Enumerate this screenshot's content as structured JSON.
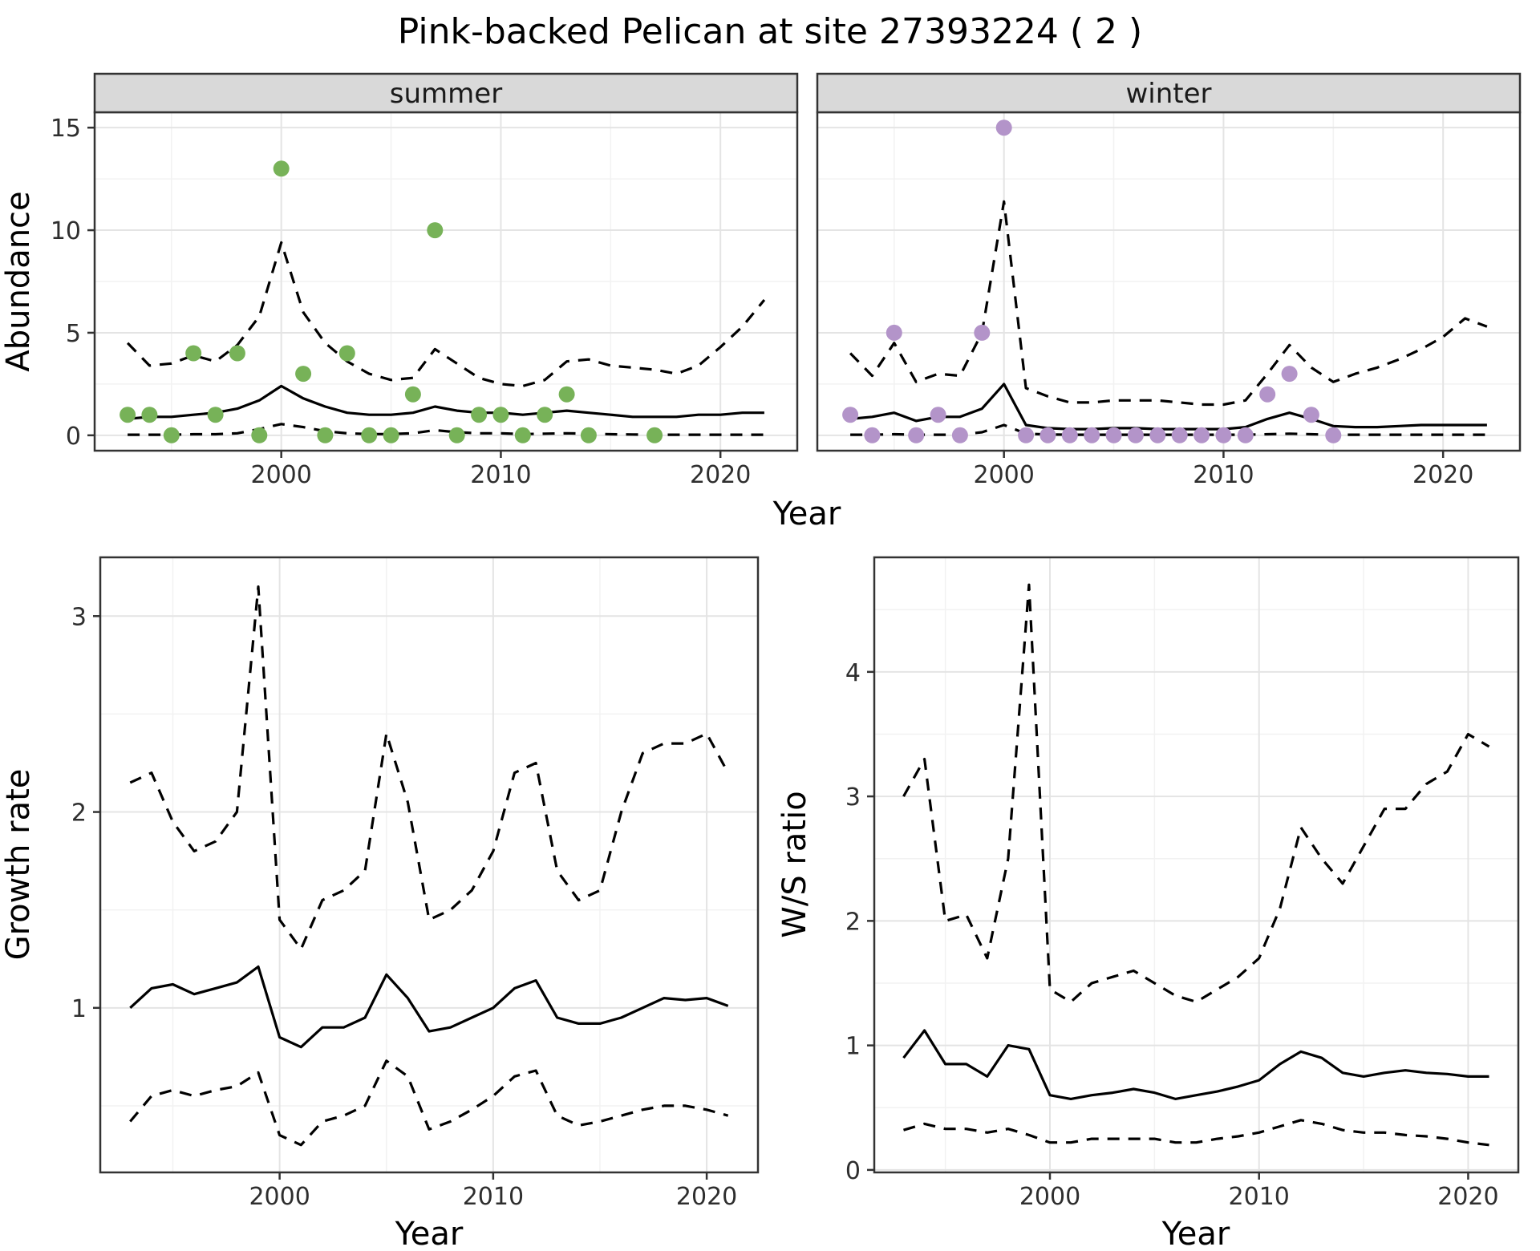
{
  "title": "Pink-backed Pelican at site 27393224 ( 2 )",
  "palette": {
    "summer_point": "#77b258",
    "winter_point": "#b394c9",
    "line": "#000000",
    "strip_bg": "#d9d9d9",
    "grid_major": "#e4e4e4",
    "grid_minor": "#f2f2f2",
    "panel_border": "#333333",
    "tick_text": "#2e2e2e"
  },
  "chart_data": [
    {
      "id": "abundance-summer",
      "type": "scatter",
      "facet": "summer",
      "xlabel": "Year",
      "ylabel": "Abundance",
      "xlim": [
        1991.5,
        2023.5
      ],
      "ylim": [
        -0.75,
        15.75
      ],
      "xticks": [
        2000,
        2010,
        2020
      ],
      "yticks": [
        0,
        5,
        10,
        15
      ],
      "legend": "none",
      "grid": true,
      "point_color": "#77b258",
      "points": {
        "x": [
          1993,
          1994,
          1995,
          1996,
          1997,
          1998,
          1999,
          2000,
          2001,
          2002,
          2003,
          2004,
          2005,
          2006,
          2007,
          2008,
          2009,
          2010,
          2011,
          2012,
          2013,
          2014,
          2017
        ],
        "y": [
          1,
          1,
          0,
          4,
          1,
          4,
          0,
          13,
          3,
          0,
          4,
          0,
          0,
          2,
          10,
          0,
          1,
          1,
          0,
          1,
          2,
          0,
          0
        ]
      },
      "series_x": [
        1993,
        1994,
        1995,
        1996,
        1997,
        1998,
        1999,
        2000,
        2001,
        2002,
        2003,
        2004,
        2005,
        2006,
        2007,
        2008,
        2009,
        2010,
        2011,
        2012,
        2013,
        2014,
        2015,
        2016,
        2017,
        2018,
        2019,
        2020,
        2021,
        2022
      ],
      "fit": [
        0.8,
        0.9,
        0.9,
        1.0,
        1.1,
        1.3,
        1.7,
        2.4,
        1.8,
        1.4,
        1.1,
        1.0,
        1.0,
        1.1,
        1.4,
        1.2,
        1.1,
        1.1,
        1.0,
        1.1,
        1.2,
        1.1,
        1.0,
        0.9,
        0.9,
        0.9,
        1.0,
        1.0,
        1.1,
        1.1
      ],
      "upper": [
        4.5,
        3.4,
        3.5,
        3.9,
        3.6,
        4.4,
        5.8,
        9.4,
        6.0,
        4.5,
        3.6,
        3.0,
        2.7,
        2.8,
        4.2,
        3.5,
        2.8,
        2.5,
        2.4,
        2.7,
        3.6,
        3.7,
        3.4,
        3.3,
        3.2,
        3.0,
        3.4,
        4.3,
        5.3,
        6.6
      ],
      "lower": [
        0.03,
        0.03,
        0.03,
        0.05,
        0.05,
        0.1,
        0.3,
        0.55,
        0.4,
        0.2,
        0.1,
        0.06,
        0.06,
        0.1,
        0.25,
        0.15,
        0.1,
        0.1,
        0.06,
        0.08,
        0.1,
        0.08,
        0.05,
        0.04,
        0.03,
        0.03,
        0.03,
        0.03,
        0.03,
        0.03
      ]
    },
    {
      "id": "abundance-winter",
      "type": "scatter",
      "facet": "winter",
      "xlabel": "Year",
      "ylabel": "Abundance",
      "xlim": [
        1991.5,
        2023.5
      ],
      "ylim": [
        -0.75,
        15.75
      ],
      "xticks": [
        2000,
        2010,
        2020
      ],
      "yticks": [
        0,
        5,
        10,
        15
      ],
      "legend": "none",
      "grid": true,
      "point_color": "#b394c9",
      "points": {
        "x": [
          1993,
          1994,
          1995,
          1996,
          1997,
          1998,
          1999,
          2000,
          2001,
          2002,
          2003,
          2004,
          2005,
          2006,
          2007,
          2008,
          2009,
          2010,
          2011,
          2012,
          2013,
          2014,
          2015
        ],
        "y": [
          1,
          0,
          5,
          0,
          1,
          0,
          5,
          15,
          0,
          0,
          0,
          0,
          0,
          0,
          0,
          0,
          0,
          0,
          0,
          2,
          3,
          1,
          0
        ]
      },
      "series_x": [
        1993,
        1994,
        1995,
        1996,
        1997,
        1998,
        1999,
        2000,
        2001,
        2002,
        2003,
        2004,
        2005,
        2006,
        2007,
        2008,
        2009,
        2010,
        2011,
        2012,
        2013,
        2014,
        2015,
        2016,
        2017,
        2018,
        2019,
        2020,
        2021,
        2022
      ],
      "fit": [
        0.8,
        0.9,
        1.1,
        0.7,
        0.9,
        0.9,
        1.3,
        2.5,
        0.5,
        0.35,
        0.3,
        0.3,
        0.35,
        0.35,
        0.3,
        0.3,
        0.3,
        0.3,
        0.4,
        0.8,
        1.1,
        0.8,
        0.45,
        0.4,
        0.4,
        0.45,
        0.5,
        0.5,
        0.5,
        0.5
      ],
      "upper": [
        4.0,
        2.9,
        4.5,
        2.6,
        3.0,
        2.9,
        5.0,
        11.4,
        2.3,
        1.9,
        1.6,
        1.6,
        1.7,
        1.7,
        1.7,
        1.6,
        1.5,
        1.5,
        1.7,
        3.0,
        4.4,
        3.3,
        2.6,
        3.0,
        3.3,
        3.7,
        4.2,
        4.8,
        5.7,
        5.3
      ],
      "lower": [
        0.03,
        0.03,
        0.05,
        0.03,
        0.03,
        0.03,
        0.15,
        0.5,
        0.08,
        0.04,
        0.03,
        0.03,
        0.03,
        0.03,
        0.03,
        0.03,
        0.03,
        0.03,
        0.03,
        0.05,
        0.08,
        0.05,
        0.03,
        0.03,
        0.03,
        0.03,
        0.03,
        0.03,
        0.03,
        0.03
      ]
    },
    {
      "id": "growth-rate",
      "type": "line",
      "xlabel": "Year",
      "ylabel": "Growth rate",
      "xlim": [
        1991.6,
        2022.4
      ],
      "ylim": [
        0.16,
        3.3
      ],
      "xticks": [
        2000,
        2010,
        2020
      ],
      "yticks": [
        1,
        2,
        3
      ],
      "legend": "none",
      "grid": true,
      "series_x": [
        1993,
        1994,
        1995,
        1996,
        1997,
        1998,
        1999,
        2000,
        2001,
        2002,
        2003,
        2004,
        2005,
        2006,
        2007,
        2008,
        2009,
        2010,
        2011,
        2012,
        2013,
        2014,
        2015,
        2016,
        2017,
        2018,
        2019,
        2020,
        2021
      ],
      "fit": [
        1.0,
        1.1,
        1.12,
        1.07,
        1.1,
        1.13,
        1.21,
        0.85,
        0.8,
        0.9,
        0.9,
        0.95,
        1.17,
        1.05,
        0.88,
        0.9,
        0.95,
        1.0,
        1.1,
        1.14,
        0.95,
        0.92,
        0.92,
        0.95,
        1.0,
        1.05,
        1.04,
        1.05,
        1.01
      ],
      "upper": [
        2.15,
        2.2,
        1.95,
        1.8,
        1.85,
        2.0,
        3.15,
        1.45,
        1.3,
        1.55,
        1.6,
        1.7,
        2.4,
        2.05,
        1.45,
        1.5,
        1.6,
        1.8,
        2.2,
        2.25,
        1.7,
        1.55,
        1.6,
        2.0,
        2.3,
        2.35,
        2.35,
        2.4,
        2.2
      ],
      "lower": [
        0.42,
        0.55,
        0.58,
        0.55,
        0.58,
        0.6,
        0.67,
        0.35,
        0.3,
        0.42,
        0.45,
        0.5,
        0.73,
        0.65,
        0.38,
        0.42,
        0.48,
        0.55,
        0.65,
        0.68,
        0.45,
        0.4,
        0.42,
        0.45,
        0.48,
        0.5,
        0.5,
        0.48,
        0.45
      ]
    },
    {
      "id": "ws-ratio",
      "type": "line",
      "xlabel": "Year",
      "ylabel": "W/S ratio",
      "xlim": [
        1991.6,
        2022.4
      ],
      "ylim": [
        -0.02,
        4.92
      ],
      "xticks": [
        2000,
        2010,
        2020
      ],
      "yticks": [
        0,
        1,
        2,
        3,
        4
      ],
      "legend": "none",
      "grid": true,
      "series_x": [
        1993,
        1994,
        1995,
        1996,
        1997,
        1998,
        1999,
        2000,
        2001,
        2002,
        2003,
        2004,
        2005,
        2006,
        2007,
        2008,
        2009,
        2010,
        2011,
        2012,
        2013,
        2014,
        2015,
        2016,
        2017,
        2018,
        2019,
        2020,
        2021
      ],
      "fit": [
        0.9,
        1.12,
        0.85,
        0.85,
        0.75,
        1.0,
        0.97,
        0.6,
        0.57,
        0.6,
        0.62,
        0.65,
        0.62,
        0.57,
        0.6,
        0.63,
        0.67,
        0.72,
        0.85,
        0.95,
        0.9,
        0.78,
        0.75,
        0.78,
        0.8,
        0.78,
        0.77,
        0.75,
        0.75
      ],
      "upper": [
        3.0,
        3.3,
        2.0,
        2.05,
        1.7,
        2.5,
        4.7,
        1.45,
        1.35,
        1.5,
        1.55,
        1.6,
        1.5,
        1.4,
        1.35,
        1.45,
        1.55,
        1.7,
        2.1,
        2.75,
        2.5,
        2.3,
        2.6,
        2.9,
        2.9,
        3.1,
        3.2,
        3.5,
        3.4
      ],
      "lower": [
        0.32,
        0.37,
        0.33,
        0.33,
        0.3,
        0.33,
        0.28,
        0.22,
        0.22,
        0.25,
        0.25,
        0.25,
        0.25,
        0.22,
        0.22,
        0.25,
        0.27,
        0.3,
        0.35,
        0.4,
        0.37,
        0.32,
        0.3,
        0.3,
        0.28,
        0.27,
        0.25,
        0.22,
        0.2
      ]
    }
  ]
}
